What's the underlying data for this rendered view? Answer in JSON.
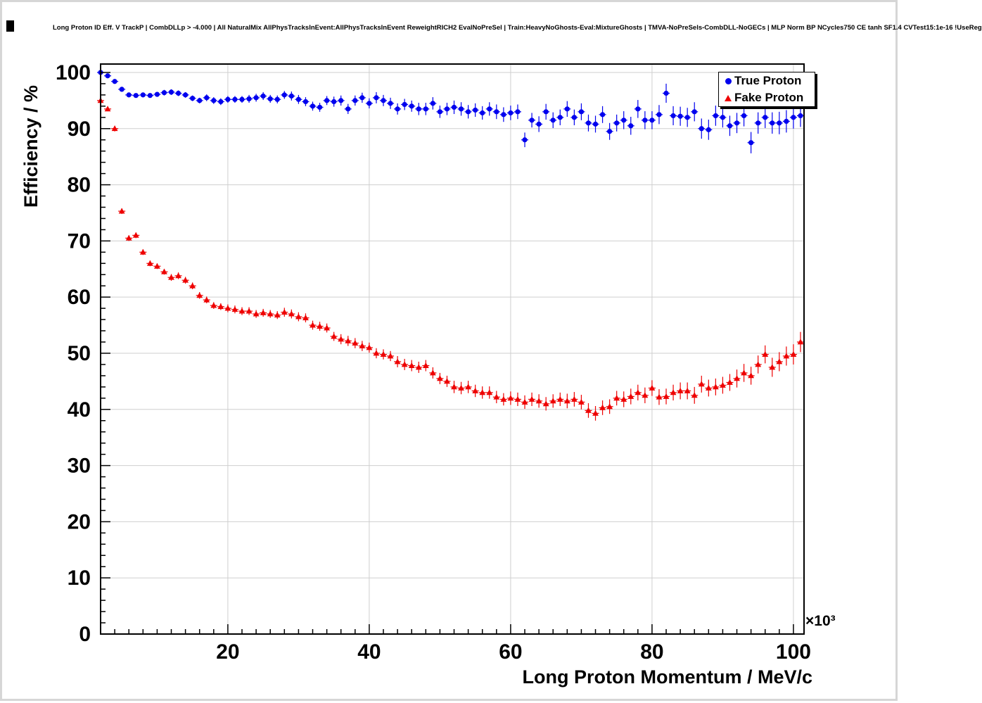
{
  "chart_data": {
    "type": "scatter",
    "title": "Long Proton ID Eff. V TrackP | CombDLLp > -4.000 | All NaturalMix AllPhysTracksInEvent:AllPhysTracksInEvent ReweightRICH2 EvalNoPreSel | Train:HeavyNoGhosts-Eval:MixtureGhosts | TMVA-NoPreSels-CombDLL-NoGECs | MLP Norm BP NCycles750 CE tanh SF1.4 CVTest15:1e-16 !UseReg",
    "xlabel": "Long Proton Momentum / MeV/c",
    "ylabel": "Efficiency / %",
    "x_scale_note": "×10³",
    "x_unit_multiplier": 1000,
    "xlim": [
      2,
      101
    ],
    "ylim": [
      0,
      100
    ],
    "x_ticks": [
      20,
      40,
      60,
      80,
      100
    ],
    "y_ticks": [
      0,
      10,
      20,
      30,
      40,
      50,
      60,
      70,
      80,
      90,
      100
    ],
    "grid": true,
    "frame_color": "#000000",
    "grid_color": "#cfcfcf",
    "legend": {
      "position": "top-right",
      "entries": [
        {
          "label": "True Proton",
          "color": "#0000ee",
          "marker": "circle"
        },
        {
          "label": "Fake Proton",
          "color": "#ee0000",
          "marker": "triangle"
        }
      ]
    },
    "series": [
      {
        "name": "True Proton",
        "marker": "circle",
        "color": "#0000ee",
        "x": [
          2,
          3,
          4,
          5,
          6,
          7,
          8,
          9,
          10,
          11,
          12,
          13,
          14,
          15,
          16,
          17,
          18,
          19,
          20,
          21,
          22,
          23,
          24,
          25,
          26,
          27,
          28,
          29,
          30,
          31,
          32,
          33,
          34,
          35,
          36,
          37,
          38,
          39,
          40,
          41,
          42,
          43,
          44,
          45,
          46,
          47,
          48,
          49,
          50,
          51,
          52,
          53,
          54,
          55,
          56,
          57,
          58,
          59,
          60,
          61,
          62,
          63,
          64,
          65,
          66,
          67,
          68,
          69,
          70,
          71,
          72,
          73,
          74,
          75,
          76,
          77,
          78,
          79,
          80,
          81,
          82,
          83,
          84,
          85,
          86,
          87,
          88,
          89,
          90,
          91,
          92,
          93,
          94,
          95,
          96,
          97,
          98,
          99,
          100,
          101
        ],
        "y": [
          100,
          99.4,
          98.4,
          97.0,
          96.0,
          95.9,
          96.0,
          95.9,
          96.1,
          96.4,
          96.5,
          96.3,
          96.0,
          95.4,
          95.0,
          95.5,
          95.0,
          94.8,
          95.2,
          95.2,
          95.2,
          95.3,
          95.5,
          95.8,
          95.3,
          95.2,
          96.0,
          95.8,
          95.2,
          94.8,
          94.0,
          93.8,
          95.0,
          94.8,
          95.0,
          93.5,
          95.0,
          95.5,
          94.5,
          95.5,
          95.0,
          94.5,
          93.5,
          94.3,
          94.0,
          93.5,
          93.5,
          94.5,
          93.0,
          93.5,
          93.8,
          93.5,
          93.0,
          93.3,
          92.8,
          93.5,
          93.0,
          92.5,
          92.8,
          93.0,
          88.0,
          91.5,
          90.8,
          93.0,
          91.5,
          92.0,
          93.5,
          92.0,
          93.0,
          91.0,
          90.8,
          92.5,
          89.5,
          91.0,
          91.5,
          90.5,
          93.5,
          91.5,
          91.5,
          92.5,
          96.3,
          92.3,
          92.2,
          92.0,
          93.0,
          90.0,
          89.8,
          92.3,
          92.0,
          90.5,
          91.0,
          92.3,
          87.5,
          91.0,
          92.0,
          91.0,
          91.0,
          91.3,
          92.0,
          92.3
        ],
        "yerr": [
          0.3,
          0.3,
          0.3,
          0.4,
          0.4,
          0.4,
          0.4,
          0.4,
          0.4,
          0.5,
          0.5,
          0.5,
          0.5,
          0.5,
          0.5,
          0.6,
          0.6,
          0.6,
          0.6,
          0.6,
          0.6,
          0.7,
          0.7,
          0.7,
          0.7,
          0.7,
          0.7,
          0.8,
          0.8,
          0.8,
          0.8,
          0.8,
          0.8,
          0.9,
          0.9,
          0.9,
          0.9,
          0.9,
          0.9,
          1.0,
          1.0,
          1.0,
          1.0,
          1.0,
          1.0,
          1.1,
          1.1,
          1.1,
          1.1,
          1.1,
          1.2,
          1.2,
          1.2,
          1.2,
          1.2,
          1.2,
          1.3,
          1.3,
          1.3,
          1.3,
          1.3,
          1.3,
          1.4,
          1.4,
          1.4,
          1.4,
          1.4,
          1.4,
          1.5,
          1.5,
          1.5,
          1.5,
          1.5,
          1.5,
          1.6,
          1.6,
          1.6,
          1.6,
          1.6,
          1.7,
          1.7,
          1.7,
          1.7,
          1.7,
          1.7,
          1.8,
          1.8,
          1.8,
          1.8,
          1.8,
          1.8,
          1.9,
          1.9,
          1.9,
          1.9,
          1.9,
          2.0,
          2.0,
          2.0,
          2.0
        ],
        "xerr": 0.5
      },
      {
        "name": "Fake Proton",
        "marker": "triangle",
        "color": "#ee0000",
        "x": [
          2,
          3,
          4,
          5,
          6,
          7,
          8,
          9,
          10,
          11,
          12,
          13,
          14,
          15,
          16,
          17,
          18,
          19,
          20,
          21,
          22,
          23,
          24,
          25,
          26,
          27,
          28,
          29,
          30,
          31,
          32,
          33,
          34,
          35,
          36,
          37,
          38,
          39,
          40,
          41,
          42,
          43,
          44,
          45,
          46,
          47,
          48,
          49,
          50,
          51,
          52,
          53,
          54,
          55,
          56,
          57,
          58,
          59,
          60,
          61,
          62,
          63,
          64,
          65,
          66,
          67,
          68,
          69,
          70,
          71,
          72,
          73,
          74,
          75,
          76,
          77,
          78,
          79,
          80,
          81,
          82,
          83,
          84,
          85,
          86,
          87,
          88,
          89,
          90,
          91,
          92,
          93,
          94,
          95,
          96,
          97,
          98,
          99,
          100,
          101
        ],
        "y": [
          95.0,
          93.5,
          90.0,
          75.3,
          70.5,
          71.0,
          68.0,
          66.0,
          65.5,
          64.5,
          63.5,
          63.8,
          63.0,
          62.0,
          60.3,
          59.5,
          58.5,
          58.3,
          58.0,
          57.8,
          57.5,
          57.5,
          57.0,
          57.2,
          57.0,
          56.8,
          57.3,
          57.0,
          56.5,
          56.3,
          55.0,
          54.8,
          54.5,
          53.0,
          52.5,
          52.2,
          51.8,
          51.3,
          51.0,
          50.0,
          49.8,
          49.5,
          48.5,
          48.0,
          47.8,
          47.5,
          47.8,
          46.5,
          45.5,
          45.0,
          44.0,
          43.8,
          44.0,
          43.3,
          43.0,
          43.0,
          42.2,
          41.8,
          42.0,
          41.8,
          41.3,
          41.8,
          41.5,
          41.0,
          41.5,
          41.8,
          41.5,
          41.8,
          41.3,
          39.8,
          39.3,
          40.3,
          40.5,
          42.0,
          41.8,
          42.3,
          43.0,
          42.5,
          43.8,
          42.2,
          42.3,
          43.0,
          43.3,
          43.3,
          42.5,
          44.5,
          43.8,
          44.0,
          44.3,
          44.8,
          45.5,
          46.5,
          46.0,
          48.0,
          49.8,
          47.5,
          48.5,
          49.5,
          49.8,
          52.0
        ],
        "yerr": [
          0.4,
          0.4,
          0.5,
          0.5,
          0.5,
          0.5,
          0.5,
          0.5,
          0.5,
          0.5,
          0.6,
          0.6,
          0.6,
          0.6,
          0.6,
          0.6,
          0.6,
          0.6,
          0.7,
          0.7,
          0.7,
          0.7,
          0.7,
          0.7,
          0.7,
          0.7,
          0.8,
          0.8,
          0.8,
          0.8,
          0.8,
          0.8,
          0.8,
          0.8,
          0.9,
          0.9,
          0.9,
          0.9,
          0.9,
          0.9,
          0.9,
          0.9,
          1.0,
          1.0,
          1.0,
          1.0,
          1.0,
          1.0,
          1.0,
          1.0,
          1.1,
          1.1,
          1.1,
          1.1,
          1.1,
          1.1,
          1.1,
          1.1,
          1.2,
          1.2,
          1.2,
          1.2,
          1.2,
          1.2,
          1.2,
          1.2,
          1.3,
          1.3,
          1.3,
          1.3,
          1.3,
          1.3,
          1.3,
          1.3,
          1.4,
          1.4,
          1.4,
          1.4,
          1.4,
          1.4,
          1.4,
          1.4,
          1.5,
          1.5,
          1.5,
          1.5,
          1.5,
          1.5,
          1.5,
          1.5,
          1.6,
          1.6,
          1.6,
          1.6,
          1.6,
          1.7,
          1.7,
          1.7,
          1.8,
          1.8
        ],
        "xerr": 0.5
      }
    ]
  }
}
